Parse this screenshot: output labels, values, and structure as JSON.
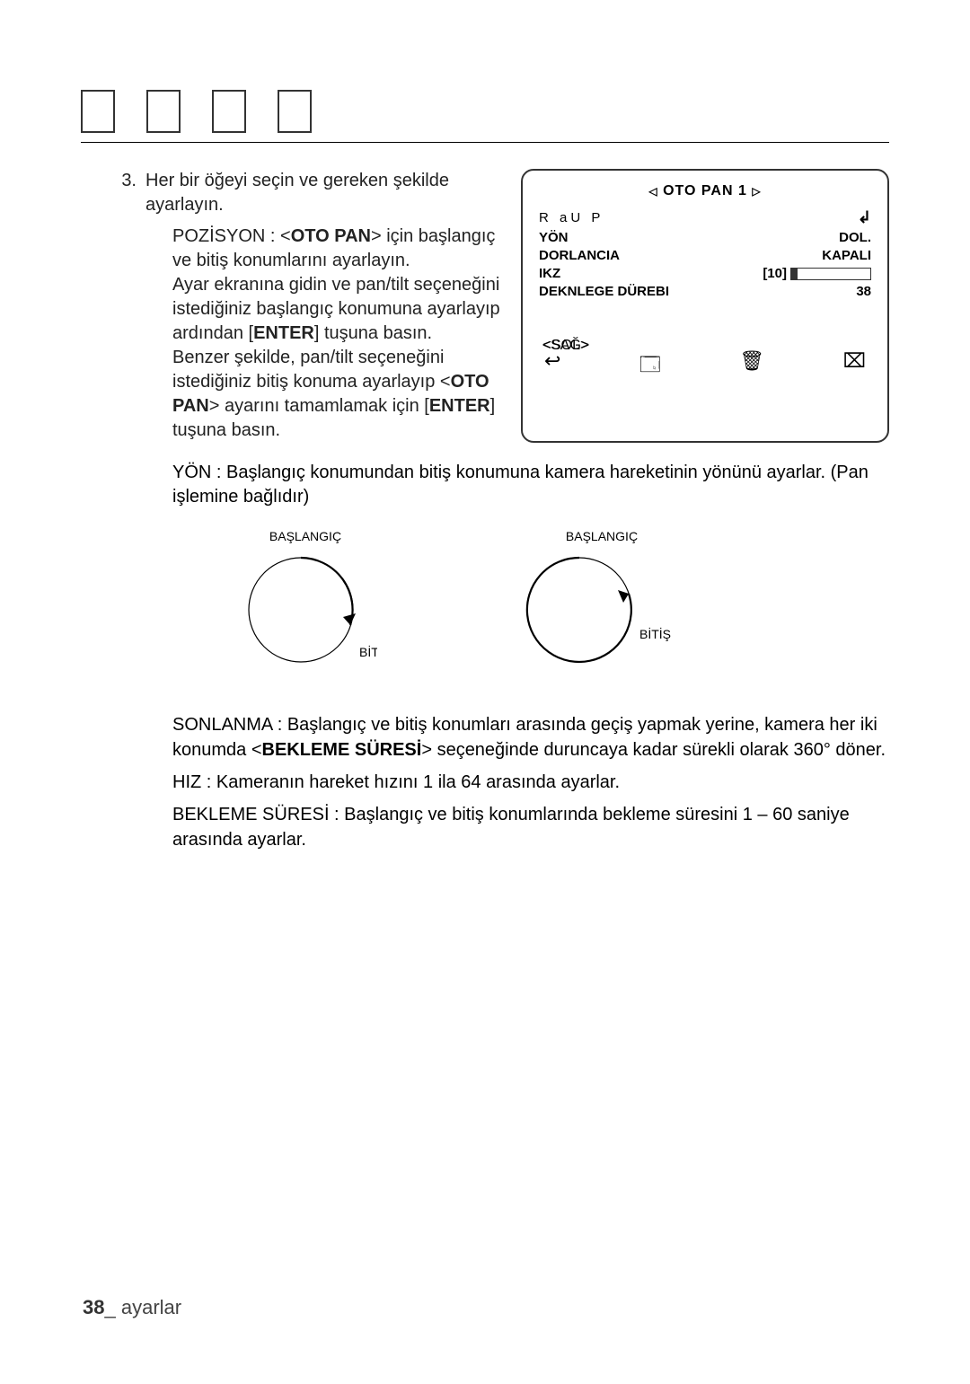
{
  "step": {
    "number": "3.",
    "line": "Her bir öğeyi seçin ve gereken şekilde ayarlayın.",
    "pos_label": "POZİSYON : <",
    "pos_bold": "OTO PAN",
    "pos_tail": "> için başlangıç ve bitiş konumlarını ayarlayın.",
    "pos_p2a": "Ayar ekranına gidin ve pan/tilt seçeneğini istediğiniz başlangıç konumuna ayarlayıp ardından [",
    "pos_p2b": "ENTER",
    "pos_p2c": "] tuşuna basın.",
    "pos_p3a": "Benzer şekilde, pan/tilt seçeneğini istediğiniz bitiş konuma ayarlayıp <",
    "pos_p3b": "OTO PAN",
    "pos_p3c": "> ayarını tamamlamak için [",
    "pos_p3d": "ENTER",
    "pos_p3e": "] tuşuna basın."
  },
  "panel": {
    "title": "OTO PAN 1",
    "r1l": "R     aU     P",
    "r2l": "YÖN",
    "r2r": "DOL.",
    "r3l": "DORLANCIA",
    "r3r": "KAPALI",
    "r4l": "IKZ",
    "r4mid": "[10]",
    "r5l": "DEKNLEGE DÜREBI",
    "r5r": "38",
    "hiz_value_pct": 8
  },
  "direction_block": {
    "text": "YÖN : Başlangıç konumundan bitiş konumuna kamera hareketinin yönünü ayarlar. (Pan işlemine bağlıdır)"
  },
  "circles": {
    "left_main": "<SAĞ>",
    "right_main": "<SOL>",
    "start": "BAŞLANGIÇ",
    "end": "BİTİŞ",
    "stroke": "#000000",
    "radius": 58
  },
  "after": {
    "p1a": "SONLANMA : Başlangıç ve bitiş konumları arasında geçiş yapmak yerine, kamera her iki konumda <",
    "p1b": "BEKLEME SÜRESİ",
    "p1c": "> seçeneğinde duruncaya kadar sürekli olarak 360° döner.",
    "p2": "HIZ : Kameranın hareket hızını 1 ila 64 arasında ayarlar.",
    "p3": "BEKLEME SÜRESİ : Başlangıç ve bitiş konumlarında bekleme süresini 1 – 60 saniye arasında ayarlar."
  },
  "footer": {
    "page": "38",
    "sep": "_ ",
    "section": "ayarlar"
  }
}
